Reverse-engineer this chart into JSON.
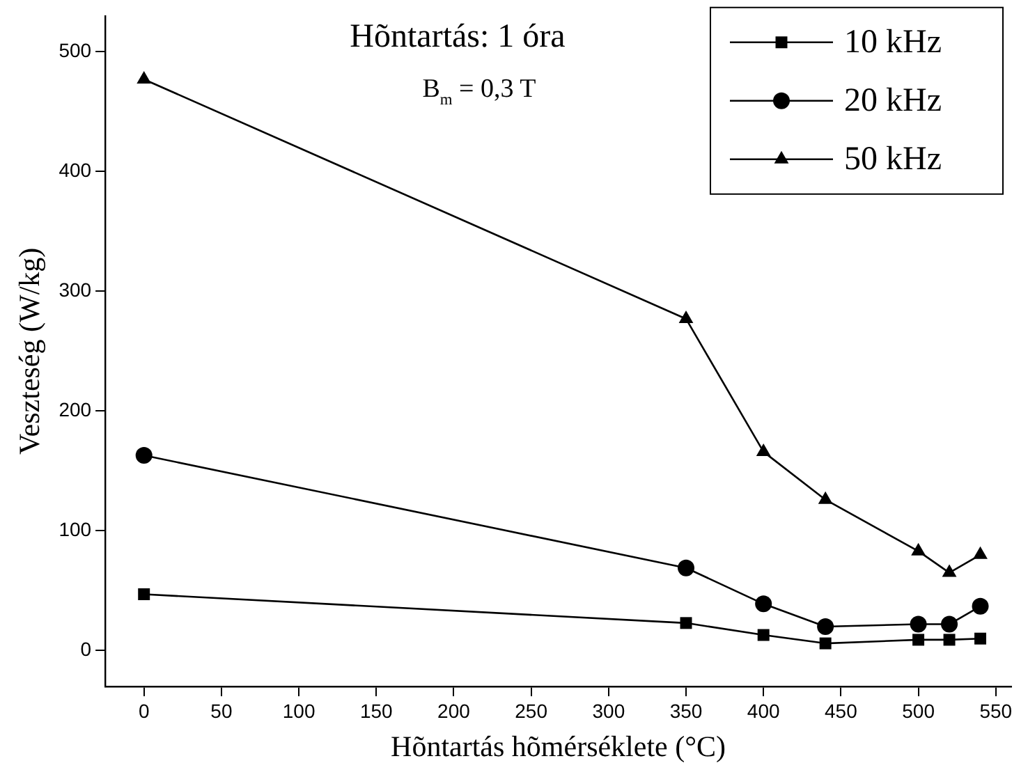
{
  "chart_data": {
    "type": "line",
    "xlabel": "Hõntartás hõmérséklete (°C)",
    "ylabel": "Veszteség (W/kg)",
    "annotations": [
      "Hõntartás: 1 óra",
      "B$_{m}$ = 0,3 T"
    ],
    "x": [
      0,
      350,
      400,
      440,
      500,
      520,
      540
    ],
    "series": [
      {
        "name": "10 kHz",
        "color": "#000000",
        "marker": "square",
        "values": [
          47,
          23,
          13,
          6,
          9,
          9,
          10
        ]
      },
      {
        "name": "20 kHz",
        "color": "#000000",
        "marker": "circle",
        "values": [
          163,
          69,
          39,
          20,
          22,
          22,
          37
        ]
      },
      {
        "name": "50 kHz",
        "color": "#000000",
        "marker": "triangle",
        "values": [
          477,
          277,
          166,
          126,
          83,
          65,
          80
        ]
      }
    ],
    "xlim": [
      -25,
      560
    ],
    "xticks": [
      0,
      50,
      100,
      150,
      200,
      250,
      300,
      350,
      400,
      450,
      500,
      550
    ],
    "ylim": [
      -30,
      530
    ],
    "yticks": [
      0,
      100,
      200,
      300,
      400,
      500
    ],
    "grid": false,
    "legend": "top right",
    "line_style": "solid"
  }
}
